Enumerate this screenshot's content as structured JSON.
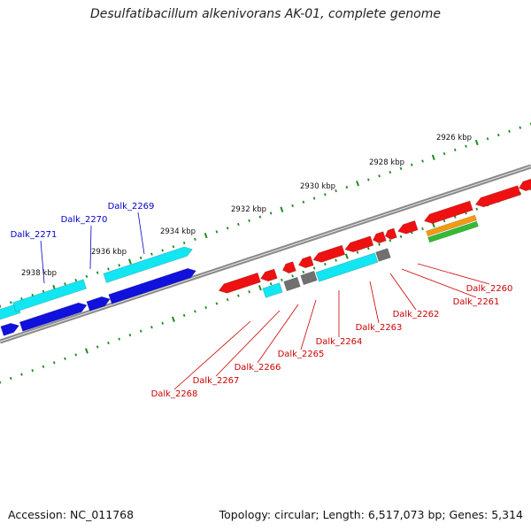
{
  "title": "Desulfatibacillum alkenivorans AK-01, complete genome",
  "footer": {
    "accession": "Accession: NC_011768",
    "summary": "Topology: circular; Length: 6,517,073 bp; Genes: 5,314"
  },
  "colors": {
    "backbone": "#8a8a8a",
    "tick": "#1f8a1f",
    "reverse_gene": "#ee1111",
    "reverse_label": "#cc0000",
    "forward_gene": "#1111dd",
    "forward_label": "#0000cc",
    "cyan_gene": "#11e6f2",
    "gray_gene": "#707070",
    "orange_gene": "#f29a11",
    "green_gene": "#33bb33"
  },
  "scale_labels": [
    {
      "text": "2926 kbp"
    },
    {
      "text": "2928 kbp"
    },
    {
      "text": "2930 kbp"
    },
    {
      "text": "2932 kbp"
    },
    {
      "text": "2934 kbp"
    },
    {
      "text": "2936 kbp"
    },
    {
      "text": "2938 kbp"
    }
  ],
  "forward_labels": [
    {
      "text": "Dalk_2269"
    },
    {
      "text": "Dalk_2270"
    },
    {
      "text": "Dalk_2271"
    }
  ],
  "reverse_labels": [
    {
      "text": "Dalk_2260"
    },
    {
      "text": "Dalk_2261"
    },
    {
      "text": "Dalk_2262"
    },
    {
      "text": "Dalk_2263"
    },
    {
      "text": "Dalk_2264"
    },
    {
      "text": "Dalk_2265"
    },
    {
      "text": "Dalk_2266"
    },
    {
      "text": "Dalk_2267"
    },
    {
      "text": "Dalk_2268"
    }
  ]
}
